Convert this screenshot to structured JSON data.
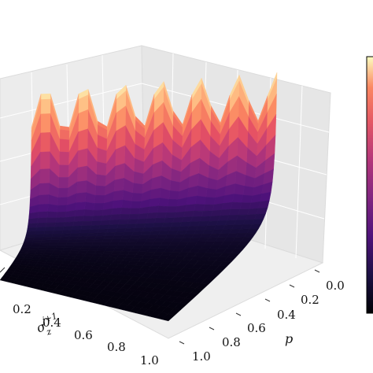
{
  "chart_data": {
    "type": "surface3d",
    "colormap": "magma",
    "grid": true,
    "x_axis": {
      "label": "p",
      "range": [
        0.0,
        1.0
      ],
      "ticks": [
        "0.0",
        "0.2",
        "0.4",
        "0.6",
        "0.8",
        "1.0"
      ]
    },
    "y_axis": {
      "label": "σ_z^{j+1}",
      "range": [
        0.0,
        1.0
      ],
      "ticks": [
        "0.2",
        "0.4",
        "0.6",
        "0.8",
        "1.0"
      ]
    },
    "z_axis": {
      "label": "",
      "range": [
        0.0,
        1.0
      ]
    },
    "surface": {
      "description_values": "z near 0 over most of the domain, rising steeply toward σ_z^{j+1} → 0",
      "sample_sigma": [
        0.05,
        0.1,
        0.2,
        0.4,
        0.6,
        0.8,
        1.0
      ],
      "sample_z": [
        0.95,
        0.75,
        0.45,
        0.2,
        0.1,
        0.05,
        0.03
      ]
    },
    "colorbar": {
      "position": "right",
      "colormap": "magma"
    }
  },
  "labels": {
    "p_label": "p",
    "sigma_base": "σ",
    "sigma_sup": "j+1",
    "sigma_sub": "z"
  },
  "ticks_p": [
    "0.0",
    "0.2",
    "0.4",
    "0.6",
    "0.8",
    "1.0"
  ],
  "ticks_sigma": [
    "0.2",
    "0.4",
    "0.6",
    "0.8",
    "1.0"
  ]
}
